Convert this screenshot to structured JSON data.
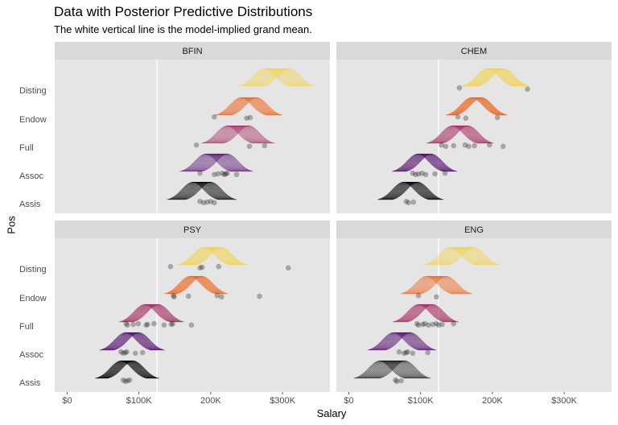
{
  "chart_data": {
    "type": "line",
    "subtype": "faceted ridgeline with posterior predictive density curves and jittered data points",
    "title": "Data with Posterior Predictive Distributions",
    "subtitle": "The white vertical line is the model-implied grand mean.",
    "xlabel": "Salary",
    "ylabel": "Pos",
    "xlim": [
      -10,
      370
    ],
    "x_ticks": [
      0,
      100,
      200,
      300
    ],
    "x_tick_labels": [
      "$0",
      "$100K",
      "200K",
      "$300K"
    ],
    "x_units": "thousands of dollars",
    "categories": [
      "Disting",
      "Endow",
      "Full",
      "Assoc",
      "Assis"
    ],
    "grand_mean": 125,
    "grid": false,
    "legend": "none",
    "colors": {
      "Assis": "#000004",
      "Assoc": "#510E6C",
      "Full": "#A52C60",
      "Endow": "#ED6925",
      "Disting": "#F3D23E",
      "points": "#000000",
      "panel": "#E5E5E5",
      "strip": "#D9D9D9",
      "mean_line": "#FFFFFF"
    },
    "facets": [
      {
        "name": "BFIN",
        "groups": [
          {
            "pos": "Disting",
            "mean_range": [
              275,
              309
            ],
            "sd": 15,
            "points": []
          },
          {
            "pos": "Endow",
            "mean_range": [
              242,
              264
            ],
            "sd": 15,
            "points": [
              205,
              250,
              255
            ]
          },
          {
            "pos": "Full",
            "mean_range": [
              223,
              253
            ],
            "sd": 15,
            "points": [
              180,
              254,
              275
            ]
          },
          {
            "pos": "Assoc",
            "mean_range": [
              193,
              223
            ],
            "sd": 15,
            "points": [
              185,
              205,
              210,
              216,
              219,
              221,
              223,
              236
            ]
          },
          {
            "pos": "Assis",
            "mean_range": [
              175,
              200
            ],
            "sd": 15,
            "points": [
              185,
              190,
              195,
              200,
              205
            ]
          }
        ]
      },
      {
        "name": "CHEM",
        "groups": [
          {
            "pos": "Disting",
            "mean_range": [
              193,
              216
            ],
            "sd": 15,
            "points": [
              154,
              249
            ]
          },
          {
            "pos": "Endow",
            "mean_range": [
              171,
              185
            ],
            "sd": 15,
            "points": [
              152,
              163,
              207
            ]
          },
          {
            "pos": "Full",
            "mean_range": [
              144,
              166
            ],
            "sd": 15,
            "points": [
              129,
              135,
              146,
              162,
              167,
              175,
              196,
              215
            ]
          },
          {
            "pos": "Assoc",
            "mean_range": [
              96,
              115
            ],
            "sd": 15,
            "points": [
              89,
              93,
              97,
              102,
              107,
              120,
              134
            ]
          },
          {
            "pos": "Assis",
            "mean_range": [
              76,
              96
            ],
            "sd": 15,
            "points": [
              80,
              83,
              90
            ]
          }
        ]
      },
      {
        "name": "PSY",
        "groups": [
          {
            "pos": "Disting",
            "mean_range": [
              190,
              215
            ],
            "sd": 15,
            "points": [
              144,
              185,
              188,
              211,
              308
            ]
          },
          {
            "pos": "Endow",
            "mean_range": [
              171,
              188
            ],
            "sd": 15,
            "points": [
              148,
              149,
              169,
              209,
              215,
              268
            ]
          },
          {
            "pos": "Full",
            "mean_range": [
              108,
              127
            ],
            "sd": 15,
            "points": [
              82,
              84,
              92,
              99,
              110,
              112,
              121,
              135,
              145,
              147,
              173
            ]
          },
          {
            "pos": "Assoc",
            "mean_range": [
              81,
              100
            ],
            "sd": 15,
            "points": [
              75,
              78,
              81,
              83,
              95,
              105
            ]
          },
          {
            "pos": "Assis",
            "mean_range": [
              75,
              92
            ],
            "sd": 15,
            "points": [
              78,
              81,
              84,
              87
            ]
          }
        ]
      },
      {
        "name": "ENG",
        "groups": [
          {
            "pos": "Disting",
            "mean_range": [
              141,
              174
            ],
            "sd": 15,
            "points": []
          },
          {
            "pos": "Endow",
            "mean_range": [
              108,
              136
            ],
            "sd": 15,
            "points": [
              97,
              122
            ]
          },
          {
            "pos": "Full",
            "mean_range": [
              97,
              117
            ],
            "sd": 15,
            "points": [
              95,
              97,
              103,
              106,
              111,
              117,
              122,
              125,
              130,
              146
            ]
          },
          {
            "pos": "Assoc",
            "mean_range": [
              62,
              86
            ],
            "sd": 15,
            "points": [
              70,
              77,
              80,
              82,
              89,
              110
            ]
          },
          {
            "pos": "Assis",
            "mean_range": [
              43,
              78
            ],
            "sd": 15,
            "points": [
              65,
              67,
              73
            ]
          }
        ]
      }
    ]
  }
}
